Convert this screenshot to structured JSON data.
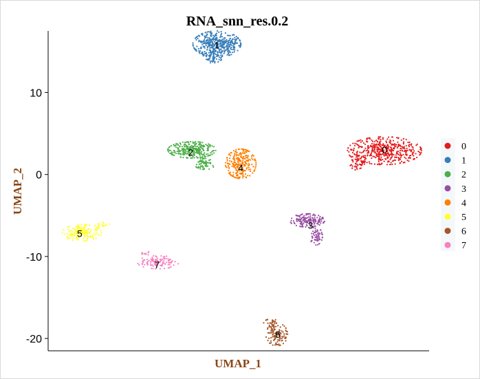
{
  "chart_data": {
    "type": "scatter",
    "title": "RNA_snn_res.0.2",
    "xlabel": "UMAP_1",
    "ylabel": "UMAP_2",
    "ylim": [
      -21.5,
      17.5
    ],
    "yticks": [
      10,
      0,
      -10,
      -20
    ],
    "grid": false,
    "legend_position": "right",
    "axis_title_color": "#8b4513",
    "clusters": [
      {
        "label": "0",
        "color": "#e41a1c",
        "label_x": 13.4,
        "label_y": 3.0,
        "blobs": [
          {
            "cx": 13.4,
            "cy": 2.9,
            "rx": 3.4,
            "ry": 1.7,
            "n": 470
          },
          {
            "cx": 11.0,
            "cy": 1.4,
            "rx": 0.8,
            "ry": 0.9,
            "n": 60
          }
        ]
      },
      {
        "label": "1",
        "color": "#377eb8",
        "label_x": -2.0,
        "label_y": 15.8,
        "blobs": [
          {
            "cx": -2.0,
            "cy": 15.9,
            "rx": 2.2,
            "ry": 1.6,
            "n": 420
          },
          {
            "cx": -2.4,
            "cy": 14.3,
            "rx": 0.9,
            "ry": 0.7,
            "n": 50
          }
        ]
      },
      {
        "label": "2",
        "color": "#4daf4a",
        "label_x": -4.4,
        "label_y": 2.7,
        "blobs": [
          {
            "cx": -4.3,
            "cy": 3.0,
            "rx": 2.2,
            "ry": 1.0,
            "n": 300
          },
          {
            "cx": -3.1,
            "cy": 1.4,
            "rx": 1.0,
            "ry": 0.8,
            "n": 70
          }
        ]
      },
      {
        "label": "3",
        "color": "#984ea3",
        "label_x": 6.6,
        "label_y": -6.2,
        "blobs": [
          {
            "cx": 6.3,
            "cy": -5.6,
            "rx": 1.6,
            "ry": 0.8,
            "n": 160
          },
          {
            "cx": 7.1,
            "cy": -7.5,
            "rx": 0.6,
            "ry": 1.1,
            "n": 60
          }
        ]
      },
      {
        "label": "4",
        "color": "#ff7f00",
        "label_x": 0.2,
        "label_y": 0.8,
        "blobs": [
          {
            "cx": 0.2,
            "cy": 1.3,
            "rx": 1.4,
            "ry": 1.8,
            "n": 260
          }
        ]
      },
      {
        "label": "5",
        "color": "#ffff33",
        "label_x": -14.6,
        "label_y": -7.2,
        "blobs": [
          {
            "cx": -14.4,
            "cy": -7.1,
            "rx": 1.8,
            "ry": 1.0,
            "n": 170
          },
          {
            "cx": -12.5,
            "cy": -6.2,
            "rx": 0.7,
            "ry": 0.4,
            "n": 20
          }
        ]
      },
      {
        "label": "6",
        "color": "#a65628",
        "label_x": 3.6,
        "label_y": -19.5,
        "blobs": [
          {
            "cx": 3.5,
            "cy": -19.5,
            "rx": 1.0,
            "ry": 1.4,
            "n": 120
          },
          {
            "cx": 3.1,
            "cy": -18.1,
            "rx": 0.8,
            "ry": 0.5,
            "n": 30
          }
        ]
      },
      {
        "label": "7",
        "color": "#f781bf",
        "label_x": -7.5,
        "label_y": -11.0,
        "blobs": [
          {
            "cx": -7.4,
            "cy": -10.7,
            "rx": 1.9,
            "ry": 0.8,
            "n": 120
          },
          {
            "cx": -8.5,
            "cy": -9.6,
            "rx": 0.4,
            "ry": 0.4,
            "n": 10
          }
        ]
      }
    ]
  }
}
